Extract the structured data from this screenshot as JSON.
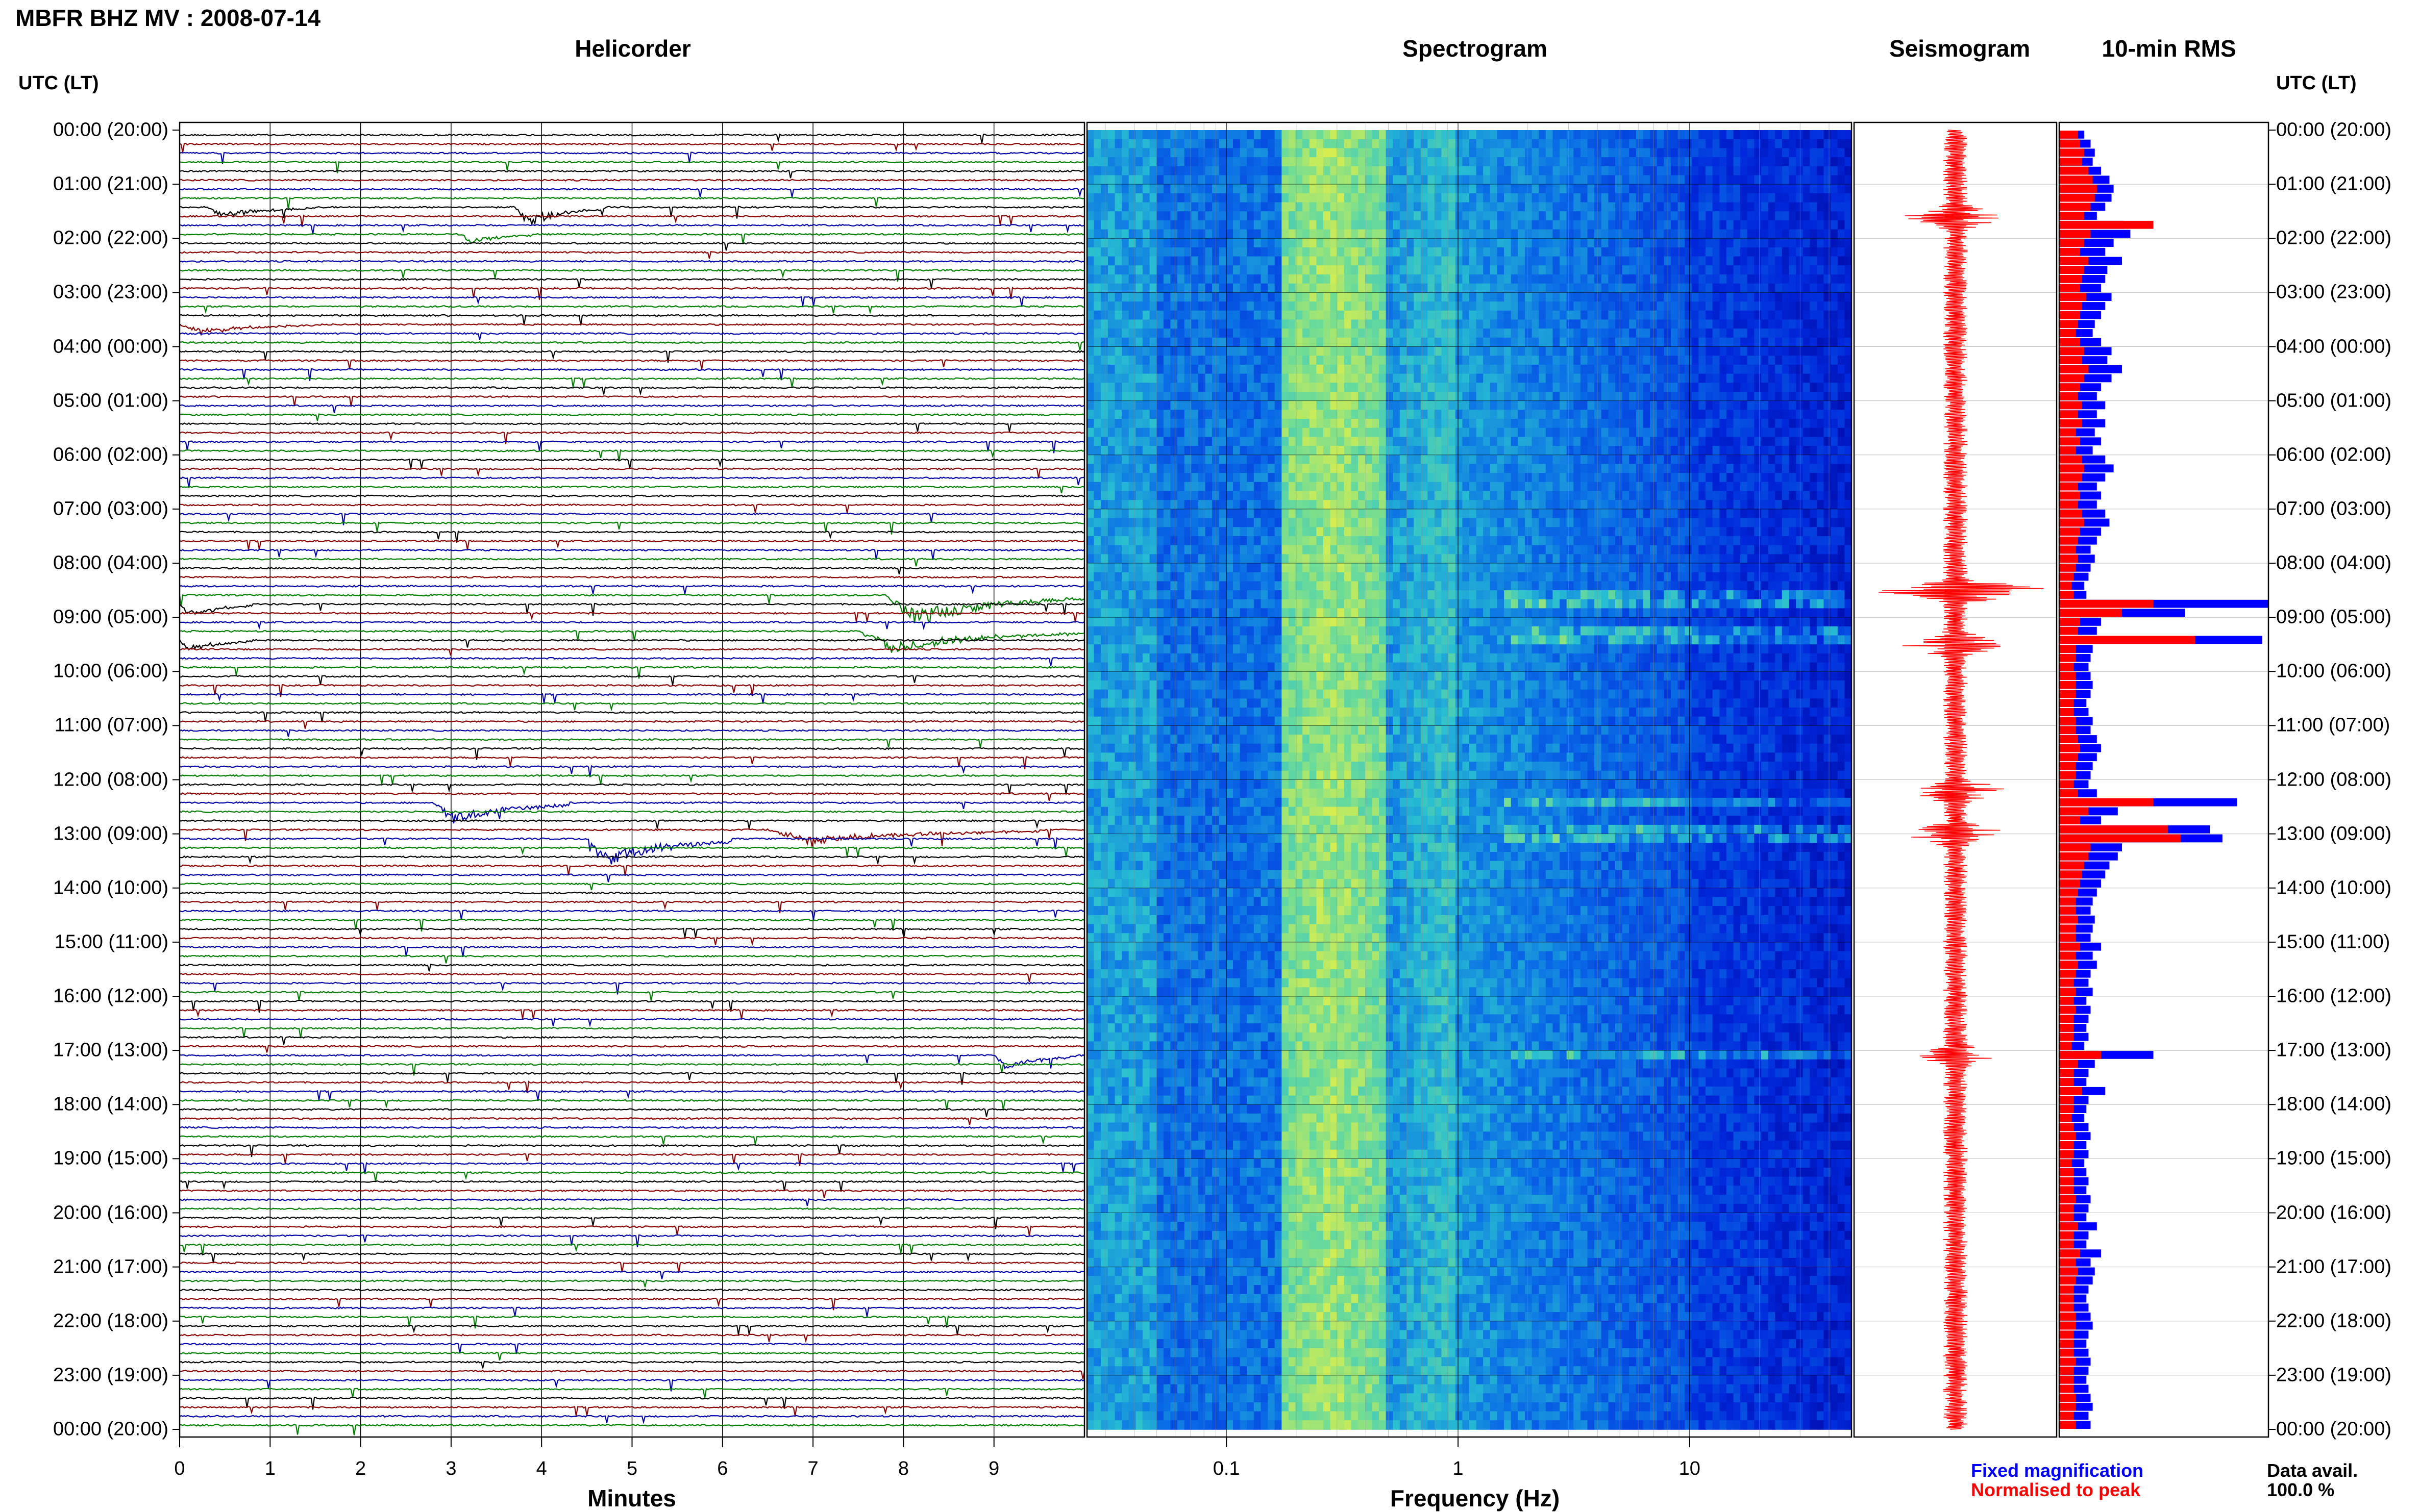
{
  "header": {
    "title": "MBFR BHZ MV : 2008-07-14"
  },
  "panels": {
    "helicorder": "Helicorder",
    "spectrogram": "Spectrogram",
    "seismogram": "Seismogram",
    "rms": "10-min RMS"
  },
  "time_axis_label": "UTC (LT)",
  "hour_labels": [
    "00:00 (20:00)",
    "01:00 (21:00)",
    "02:00 (22:00)",
    "03:00 (23:00)",
    "04:00 (00:00)",
    "05:00 (01:00)",
    "06:00 (02:00)",
    "07:00 (03:00)",
    "08:00 (04:00)",
    "09:00 (05:00)",
    "10:00 (06:00)",
    "11:00 (07:00)",
    "12:00 (08:00)",
    "13:00 (09:00)",
    "14:00 (10:00)",
    "15:00 (11:00)",
    "16:00 (12:00)",
    "17:00 (13:00)",
    "18:00 (14:00)",
    "19:00 (15:00)",
    "20:00 (16:00)",
    "21:00 (17:00)",
    "22:00 (18:00)",
    "23:00 (19:00)",
    "00:00 (20:00)"
  ],
  "legend": {
    "fixed": "Fixed magnification",
    "normalised": "Normalised to peak",
    "avail_label": "Data avail.",
    "avail_value": "100.0 %"
  },
  "colors": {
    "trace_cycle": [
      "#000000",
      "#8b0000",
      "#0000aa",
      "#008000"
    ],
    "rms_fixed": "#0000ff",
    "rms_normalised": "#ff0000",
    "seismogram": "#ff0000"
  },
  "chart_data": [
    {
      "type": "line",
      "name": "helicorder",
      "xlabel": "Minutes",
      "x_ticks": [
        "0",
        "1",
        "2",
        "3",
        "4",
        "5",
        "6",
        "7",
        "8",
        "9"
      ],
      "xlim": [
        0,
        10
      ],
      "rows_per_hour": 6,
      "events": [
        {
          "row": 8,
          "start_min": 3.7,
          "dur_min": 1.0,
          "amp": 1.6
        },
        {
          "row": 8,
          "start_min": 0.3,
          "dur_min": 1.2,
          "amp": 0.9
        },
        {
          "row": 11,
          "start_min": 3.1,
          "dur_min": 0.8,
          "amp": 0.8
        },
        {
          "row": 21,
          "start_min": 0.0,
          "dur_min": 1.5,
          "amp": 0.8
        },
        {
          "row": 51,
          "start_min": 7.8,
          "dur_min": 2.2,
          "amp": 2.6
        },
        {
          "row": 52,
          "start_min": 0.0,
          "dur_min": 0.8,
          "amp": 1.2
        },
        {
          "row": 55,
          "start_min": 7.5,
          "dur_min": 2.5,
          "amp": 1.8
        },
        {
          "row": 56,
          "start_min": 0.0,
          "dur_min": 0.8,
          "amp": 1.0
        },
        {
          "row": 74,
          "start_min": 2.8,
          "dur_min": 1.5,
          "amp": 1.8
        },
        {
          "row": 78,
          "start_min": 4.5,
          "dur_min": 1.6,
          "amp": 2.2
        },
        {
          "row": 77,
          "start_min": 6.5,
          "dur_min": 3.0,
          "amp": 1.2
        },
        {
          "row": 102,
          "start_min": 9.0,
          "dur_min": 0.9,
          "amp": 1.2
        }
      ]
    },
    {
      "type": "heatmap",
      "name": "spectrogram",
      "xlabel": "Frequency (Hz)",
      "x_ticks": [
        "0.1",
        "1",
        "10"
      ],
      "xscale": "log",
      "xlim": [
        0.025,
        50
      ]
    },
    {
      "type": "line",
      "name": "seismogram",
      "bursts": [
        {
          "hour": 1.6,
          "amp": 1.6
        },
        {
          "hour": 8.5,
          "amp": 3.4
        },
        {
          "hour": 9.5,
          "amp": 1.8
        },
        {
          "hour": 12.2,
          "amp": 1.6
        },
        {
          "hour": 13.0,
          "amp": 1.8
        },
        {
          "hour": 17.1,
          "amp": 1.2
        }
      ]
    },
    {
      "type": "bar",
      "name": "rms",
      "series": [
        {
          "name": "Fixed magnification",
          "values": [
            0.12,
            0.15,
            0.17,
            0.16,
            0.2,
            0.24,
            0.26,
            0.25,
            0.22,
            0.18,
            0.31,
            0.34,
            0.26,
            0.22,
            0.3,
            0.23,
            0.22,
            0.2,
            0.25,
            0.22,
            0.2,
            0.17,
            0.16,
            0.2,
            0.25,
            0.23,
            0.3,
            0.25,
            0.2,
            0.18,
            0.22,
            0.18,
            0.22,
            0.17,
            0.2,
            0.16,
            0.22,
            0.26,
            0.22,
            0.18,
            0.2,
            0.18,
            0.22,
            0.24,
            0.2,
            0.18,
            0.15,
            0.17,
            0.15,
            0.14,
            0.12,
            0.13,
            1.0,
            0.6,
            0.2,
            0.18,
            0.97,
            0.16,
            0.15,
            0.14,
            0.15,
            0.16,
            0.15,
            0.13,
            0.14,
            0.16,
            0.15,
            0.18,
            0.2,
            0.18,
            0.16,
            0.15,
            0.14,
            0.18,
            0.85,
            0.28,
            0.2,
            0.72,
            0.78,
            0.3,
            0.28,
            0.24,
            0.22,
            0.2,
            0.18,
            0.16,
            0.15,
            0.17,
            0.16,
            0.15,
            0.2,
            0.16,
            0.18,
            0.15,
            0.14,
            0.16,
            0.13,
            0.15,
            0.14,
            0.13,
            0.14,
            0.12,
            0.45,
            0.17,
            0.14,
            0.13,
            0.22,
            0.14,
            0.13,
            0.12,
            0.14,
            0.15,
            0.13,
            0.14,
            0.12,
            0.13,
            0.14,
            0.13,
            0.15,
            0.14,
            0.13,
            0.18,
            0.14,
            0.13,
            0.2,
            0.15,
            0.17,
            0.16,
            0.14,
            0.13,
            0.14,
            0.15,
            0.16,
            0.14,
            0.13,
            0.14,
            0.15,
            0.14,
            0.13,
            0.14,
            0.15,
            0.16,
            0.14,
            0.15
          ]
        },
        {
          "name": "Normalised to peak",
          "values": [
            0.09,
            0.1,
            0.12,
            0.11,
            0.14,
            0.16,
            0.18,
            0.17,
            0.15,
            0.12,
            0.45,
            0.15,
            0.12,
            0.1,
            0.14,
            0.12,
            0.11,
            0.1,
            0.13,
            0.11,
            0.1,
            0.09,
            0.08,
            0.1,
            0.12,
            0.11,
            0.14,
            0.12,
            0.1,
            0.09,
            0.11,
            0.09,
            0.11,
            0.08,
            0.1,
            0.08,
            0.11,
            0.12,
            0.11,
            0.09,
            0.1,
            0.09,
            0.11,
            0.12,
            0.1,
            0.09,
            0.08,
            0.09,
            0.08,
            0.07,
            0.06,
            0.07,
            0.45,
            0.3,
            0.1,
            0.09,
            0.65,
            0.08,
            0.08,
            0.07,
            0.08,
            0.08,
            0.08,
            0.07,
            0.07,
            0.08,
            0.08,
            0.09,
            0.1,
            0.09,
            0.08,
            0.08,
            0.07,
            0.09,
            0.45,
            0.14,
            0.1,
            0.52,
            0.58,
            0.15,
            0.14,
            0.12,
            0.11,
            0.1,
            0.09,
            0.08,
            0.08,
            0.09,
            0.08,
            0.08,
            0.1,
            0.08,
            0.09,
            0.08,
            0.07,
            0.08,
            0.07,
            0.08,
            0.07,
            0.07,
            0.07,
            0.06,
            0.2,
            0.09,
            0.07,
            0.07,
            0.11,
            0.07,
            0.07,
            0.06,
            0.07,
            0.08,
            0.07,
            0.07,
            0.06,
            0.07,
            0.07,
            0.07,
            0.08,
            0.07,
            0.07,
            0.09,
            0.07,
            0.07,
            0.1,
            0.08,
            0.09,
            0.08,
            0.07,
            0.07,
            0.07,
            0.08,
            0.08,
            0.07,
            0.07,
            0.07,
            0.08,
            0.07,
            0.07,
            0.07,
            0.08,
            0.08,
            0.07,
            0.08
          ]
        }
      ]
    }
  ]
}
